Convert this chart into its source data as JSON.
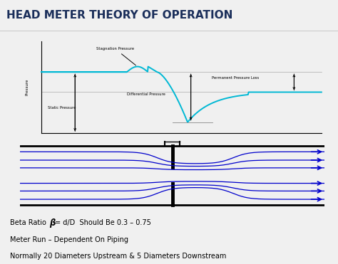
{
  "title": "HEAD METER THEORY OF OPERATION",
  "title_color": "#1a2e5a",
  "title_fontsize": 11,
  "bg_color": "#f0f0f0",
  "pressure_line_color": "#00b8d4",
  "flow_line_color": "#0000cc",
  "pipe_color": "#000000",
  "arrow_color": "#0000cc",
  "text_color": "#000000",
  "labels": {
    "stagnation": "Stagnation Pressure",
    "differential": "Differential Pressure",
    "static": "Static Pressure",
    "permanent": "Permanent Pressure Loss",
    "pressure_axis": "Pressure"
  },
  "beta_line1_pre": "Beta Ratio ",
  "beta_symbol": "β",
  "beta_line1_post": "= d/D  Should Be 0.3 – 0.75",
  "meter_text": "Meter Run – Dependent On Piping",
  "normal_text": "Normally 20 Diameters Upstream & 5 Diameters Downstream"
}
